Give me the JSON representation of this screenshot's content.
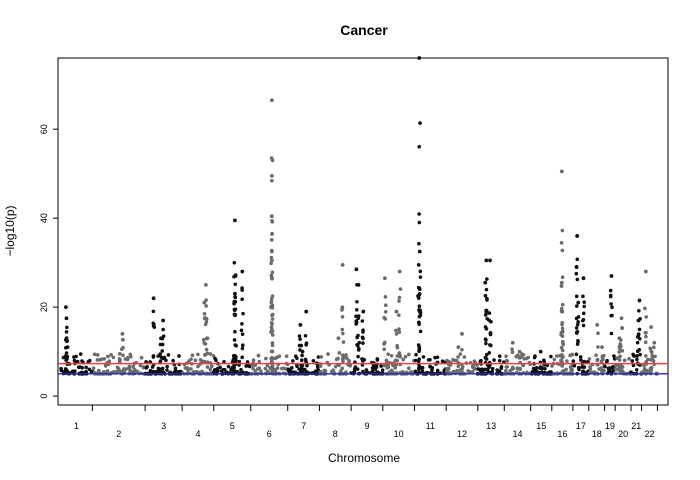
{
  "chart_data": {
    "type": "scatter",
    "title": "Cancer",
    "xlabel": "Chromosome",
    "ylabel": "−log10(p)",
    "ylim": [
      -2,
      76
    ],
    "y_ticks": [
      0,
      20,
      40,
      60
    ],
    "grid": false,
    "legend": "none",
    "colors": {
      "odd_chromosomes": "#111111",
      "even_chromosomes": "#6b6b6b",
      "upper_threshold": "#e8414b",
      "lower_threshold": "#2929b8",
      "axis": "#000000"
    },
    "threshold_lines": [
      7.3,
      5.0
    ],
    "chromosomes": [
      {
        "label": "1",
        "range": [
          0,
          6
        ],
        "peaks": [
          {
            "x": 1.0,
            "y": 20
          },
          {
            "x": 1.1,
            "y": 17.5
          },
          {
            "x": 1.3,
            "y": 11
          }
        ]
      },
      {
        "label": "2",
        "range": [
          6,
          16
        ],
        "peaks": [
          {
            "x": 11.7,
            "y": 14
          },
          {
            "x": 11.2,
            "y": 9.5
          }
        ]
      },
      {
        "label": "3",
        "range": [
          16,
          23
        ],
        "peaks": [
          {
            "x": 17.6,
            "y": 22
          },
          {
            "x": 19.4,
            "y": 17
          },
          {
            "x": 19.0,
            "y": 13
          }
        ]
      },
      {
        "label": "4",
        "range": [
          23,
          29
        ],
        "peaks": [
          {
            "x": 27.5,
            "y": 25
          },
          {
            "x": 27.2,
            "y": 21
          },
          {
            "x": 27.8,
            "y": 13
          }
        ]
      },
      {
        "label": "5",
        "range": [
          29,
          36
        ],
        "peaks": [
          {
            "x": 33.0,
            "y": 39.5
          },
          {
            "x": 33.1,
            "y": 27
          },
          {
            "x": 34.4,
            "y": 28
          },
          {
            "x": 33.0,
            "y": 23
          }
        ]
      },
      {
        "label": "6",
        "range": [
          36,
          43
        ],
        "peaks": [
          {
            "x": 40.0,
            "y": 66.5
          },
          {
            "x": 40.0,
            "y": 49.5
          },
          {
            "x": 40.0,
            "y": 32.5
          },
          {
            "x": 40.0,
            "y": 30.5
          }
        ]
      },
      {
        "label": "7",
        "range": [
          43,
          49
        ],
        "peaks": [
          {
            "x": 46.5,
            "y": 19
          },
          {
            "x": 45.4,
            "y": 16
          },
          {
            "x": 45.8,
            "y": 10
          }
        ]
      },
      {
        "label": "8",
        "range": [
          49,
          55
        ],
        "peaks": [
          {
            "x": 53.4,
            "y": 29.5
          },
          {
            "x": 52.6,
            "y": 13
          }
        ]
      },
      {
        "label": "9",
        "range": [
          55,
          61
        ],
        "peaks": [
          {
            "x": 56.0,
            "y": 28.5
          },
          {
            "x": 56.4,
            "y": 25
          },
          {
            "x": 57.3,
            "y": 19
          }
        ]
      },
      {
        "label": "10",
        "range": [
          61,
          67
        ],
        "peaks": [
          {
            "x": 61.4,
            "y": 26.5
          },
          {
            "x": 64.2,
            "y": 28
          },
          {
            "x": 63.6,
            "y": 19
          }
        ]
      },
      {
        "label": "11",
        "range": [
          67,
          73
        ],
        "peaks": [
          {
            "x": 67.9,
            "y": 76
          },
          {
            "x": 68.0,
            "y": 32.5
          },
          {
            "x": 67.8,
            "y": 29.5
          }
        ]
      },
      {
        "label": "12",
        "range": [
          73,
          79
        ],
        "peaks": [
          {
            "x": 76.0,
            "y": 14
          },
          {
            "x": 75.3,
            "y": 11
          }
        ]
      },
      {
        "label": "13",
        "range": [
          79,
          84
        ],
        "peaks": [
          {
            "x": 80.6,
            "y": 30.5
          },
          {
            "x": 81.3,
            "y": 30.5
          },
          {
            "x": 80.4,
            "y": 25.5
          }
        ]
      },
      {
        "label": "14",
        "range": [
          84,
          89
        ],
        "peaks": [
          {
            "x": 85.6,
            "y": 12
          },
          {
            "x": 86.9,
            "y": 10
          }
        ]
      },
      {
        "label": "15",
        "range": [
          89,
          93
        ],
        "peaks": [
          {
            "x": 90.9,
            "y": 10
          },
          {
            "x": 91.5,
            "y": 8
          }
        ]
      },
      {
        "label": "16",
        "range": [
          93,
          97
        ],
        "peaks": [
          {
            "x": 94.9,
            "y": 50.5
          },
          {
            "x": 94.9,
            "y": 25.5
          },
          {
            "x": 95.0,
            "y": 19
          }
        ]
      },
      {
        "label": "17",
        "range": [
          97,
          100
        ],
        "peaks": [
          {
            "x": 97.8,
            "y": 36
          },
          {
            "x": 99.0,
            "y": 26.5
          },
          {
            "x": 98.0,
            "y": 21
          }
        ]
      },
      {
        "label": "18",
        "range": [
          100,
          103
        ],
        "peaks": [
          {
            "x": 101.6,
            "y": 16
          },
          {
            "x": 102.5,
            "y": 11
          }
        ]
      },
      {
        "label": "19",
        "range": [
          103,
          105
        ],
        "peaks": [
          {
            "x": 104.3,
            "y": 27
          }
        ]
      },
      {
        "label": "20",
        "range": [
          105,
          108
        ],
        "peaks": [
          {
            "x": 106.2,
            "y": 17.5
          },
          {
            "x": 105.8,
            "y": 13
          }
        ]
      },
      {
        "label": "21",
        "range": [
          108,
          110
        ],
        "peaks": [
          {
            "x": 109.6,
            "y": 21.5
          },
          {
            "x": 109.4,
            "y": 17
          }
        ]
      },
      {
        "label": "22",
        "range": [
          110,
          113
        ],
        "peaks": [
          {
            "x": 110.8,
            "y": 28
          },
          {
            "x": 111.8,
            "y": 15.5
          },
          {
            "x": 112.4,
            "y": 12
          }
        ]
      }
    ],
    "xlim": [
      -0.5,
      115
    ]
  }
}
